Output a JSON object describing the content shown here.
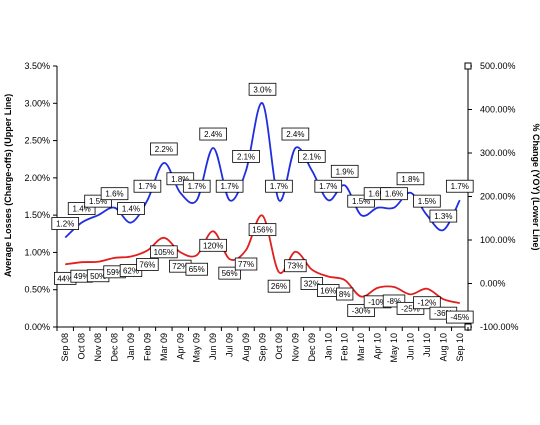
{
  "chart_data": {
    "type": "line",
    "categories": [
      "Sep 08",
      "Oct 08",
      "Nov 08",
      "Dec 08",
      "Jan 09",
      "Feb 09",
      "Mar 09",
      "Apr 09",
      "May 09",
      "Jun 09",
      "Jul 09",
      "Aug 09",
      "Sep 09",
      "Oct 09",
      "Nov 09",
      "Dec 09",
      "Jan 10",
      "Feb 10",
      "Mar 10",
      "Apr 10",
      "May 10",
      "Jun 10",
      "Jul 10",
      "Aug 10",
      "Sep 10"
    ],
    "ylabel": "Average Losses (Charge-offs) (Upper Line)",
    "y2label": "% Change (YOY) (Lower Line)",
    "ylim": [
      0,
      3.5
    ],
    "y2lim": [
      -100,
      500
    ],
    "yticks": [
      "0.00%",
      "0.50%",
      "1.00%",
      "1.50%",
      "2.00%",
      "2.50%",
      "3.00%",
      "3.50%"
    ],
    "y2ticks": [
      "-100.00%",
      "0.00%",
      "100.00%",
      "200.00%",
      "300.00%",
      "400.00%",
      "500.00%"
    ],
    "series": [
      {
        "axis": "left",
        "color": "#1f2fe0",
        "values": [
          1.2,
          1.4,
          1.5,
          1.6,
          1.4,
          1.7,
          2.2,
          1.8,
          1.7,
          2.4,
          1.7,
          2.1,
          3.0,
          1.7,
          2.4,
          2.1,
          1.7,
          1.9,
          1.5,
          1.6,
          1.6,
          1.8,
          1.5,
          1.3,
          1.7
        ],
        "labels": [
          "1.2%",
          "1.4%",
          "1.5%",
          "1.6%",
          "1.4%",
          "1.7%",
          "2.2%",
          "1.8%",
          "1.7%",
          "2.4%",
          "1.7%",
          "2.1%",
          "3.0%",
          "1.7%",
          "2.4%",
          "2.1%",
          "1.7%",
          "1.9%",
          "1.5%",
          "1.6%",
          "1.6%",
          "1.8%",
          "1.5%",
          "1.3%",
          "1.7%"
        ]
      },
      {
        "axis": "right",
        "color": "#e01f1f",
        "values": [
          44,
          49,
          50,
          59,
          62,
          76,
          105,
          72,
          65,
          120,
          56,
          77,
          156,
          26,
          73,
          32,
          16,
          8,
          -30,
          -10,
          -8,
          -25,
          -12,
          -36,
          -45
        ],
        "labels": [
          "44%",
          "49%",
          "50%",
          "59%",
          "62%",
          "76%",
          "105%",
          "72%",
          "65%",
          "120%",
          "56%",
          "77%",
          "156%",
          "26%",
          "73%",
          "32%",
          "16%",
          "8%",
          "-30%",
          "-10%",
          "-8%",
          "-25%",
          "-12%",
          "-36%",
          "-45%"
        ]
      }
    ],
    "grid": false,
    "legend": "none"
  }
}
